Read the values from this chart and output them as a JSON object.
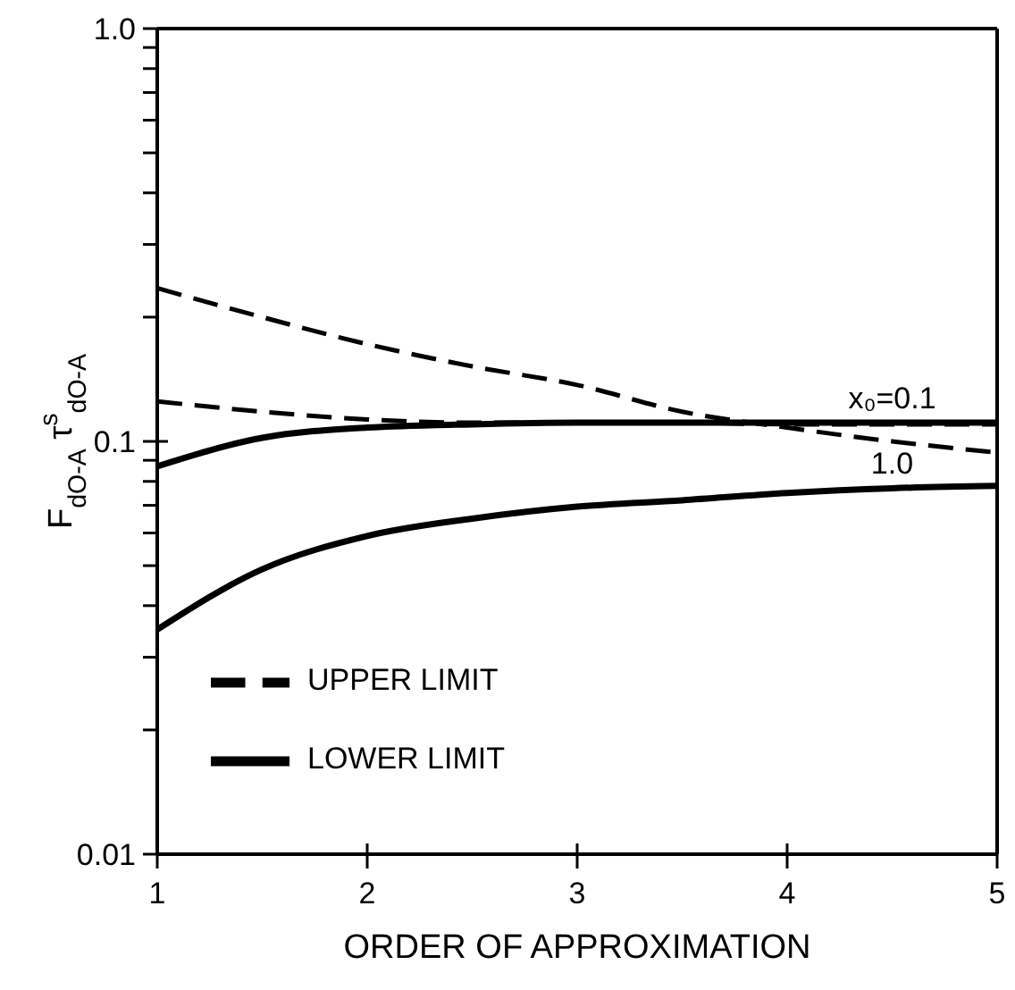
{
  "chart_data": {
    "type": "line",
    "xlabel": "ORDER OF APPROXIMATION",
    "ylabel": "F$_{dO-A}$ τ$^{s}$$_{dO-A}$",
    "x": [
      1,
      1.5,
      2,
      2.5,
      3,
      3.5,
      4,
      4.5,
      5
    ],
    "series": [
      {
        "name": "UPPER LIMIT",
        "color": "#000000",
        "line_style": "dashed",
        "values": [
          0.235,
          0.2,
          0.172,
          0.152,
          0.137,
          0.118,
          0.108,
          0.1,
          0.094
        ]
      },
      {
        "color": "#000000",
        "line_style": "dashed",
        "values": [
          0.125,
          0.118,
          0.113,
          0.111,
          0.111,
          0.111,
          0.11,
          0.11,
          0.11
        ]
      },
      {
        "name": "LOWER LIMIT",
        "color": "#000000",
        "line_style": "solid",
        "values": [
          0.087,
          0.102,
          0.108,
          0.11,
          0.111,
          0.111,
          0.111,
          0.111,
          0.111
        ]
      },
      {
        "color": "#000000",
        "line_style": "solid",
        "values": [
          0.035,
          0.049,
          0.059,
          0.065,
          0.0695,
          0.072,
          0.075,
          0.077,
          0.078
        ]
      }
    ],
    "annotations": [
      {
        "text": "x₀=0.1",
        "x": 4.5,
        "y": 0.111
      },
      {
        "text": "1.0",
        "x": 4.5,
        "y": 0.077
      }
    ],
    "xlim": [
      1,
      5
    ],
    "xticks": [
      1,
      2,
      3,
      4,
      5
    ],
    "ylim": [
      0.01,
      1
    ],
    "yticks": [
      0.01,
      {
        "value": 0.02,
        "label": null
      },
      {
        "value": 0.03,
        "label": null
      },
      {
        "value": 0.04,
        "label": null
      },
      {
        "value": 0.05,
        "label": null
      },
      {
        "value": 0.06,
        "label": null
      },
      {
        "value": 0.07,
        "label": null
      },
      {
        "value": 0.08,
        "label": null
      },
      {
        "value": 0.09,
        "label": null
      },
      0.1,
      {
        "value": 0.2,
        "label": null
      },
      {
        "value": 0.3,
        "label": null
      },
      {
        "value": 0.4,
        "label": null
      },
      {
        "value": 0.5,
        "label": null
      },
      {
        "value": 0.6,
        "label": null
      },
      {
        "value": 0.7,
        "label": null
      },
      {
        "value": 0.8,
        "label": null
      },
      {
        "value": 0.9,
        "label": null
      },
      {
        "value": 1,
        "label": "1.0"
      }
    ],
    "log": true,
    "grid": false,
    "legend": "bottom left",
    "marker": "none"
  }
}
